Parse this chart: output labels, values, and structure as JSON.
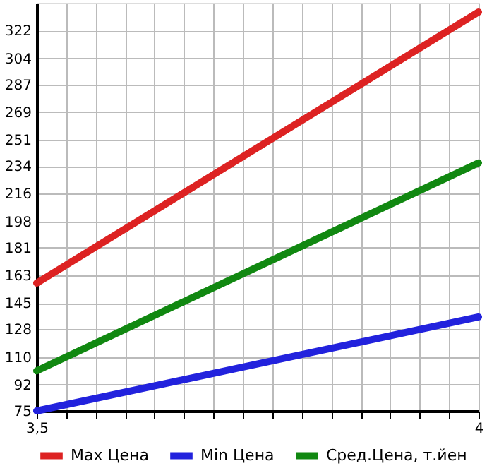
{
  "chart_data": {
    "type": "line",
    "x": [
      3.5,
      4
    ],
    "series": [
      {
        "name": "Max Цена",
        "color": "#dd2222",
        "values": [
          158,
          334
        ]
      },
      {
        "name": "Min Цена",
        "color": "#2222dd",
        "values": [
          75,
          136
        ]
      },
      {
        "name": "Сред.Цена, т.йен",
        "color": "#118811",
        "values": [
          101,
          236
        ]
      }
    ],
    "xlim": [
      3.5,
      4
    ],
    "xticks": [
      {
        "value": 3.5,
        "label": "3,5"
      },
      {
        "value": 3.5333,
        "label": null
      },
      {
        "value": 3.5667,
        "label": null
      },
      {
        "value": 3.6,
        "label": null
      },
      {
        "value": 3.6333,
        "label": null
      },
      {
        "value": 3.6667,
        "label": null
      },
      {
        "value": 3.7,
        "label": null
      },
      {
        "value": 3.7333,
        "label": null
      },
      {
        "value": 3.7667,
        "label": null
      },
      {
        "value": 3.8,
        "label": null
      },
      {
        "value": 3.8333,
        "label": null
      },
      {
        "value": 3.8667,
        "label": null
      },
      {
        "value": 3.9,
        "label": null
      },
      {
        "value": 3.9333,
        "label": null
      },
      {
        "value": 3.9667,
        "label": null
      },
      {
        "value": 4,
        "label": "4"
      }
    ],
    "ylim": [
      75,
      340
    ],
    "yticks": [
      75,
      92,
      110,
      128,
      145,
      163,
      181,
      198,
      216,
      234,
      251,
      269,
      287,
      304,
      322
    ],
    "grid": true,
    "legend": "bottom",
    "marker": "none",
    "line_style": "solid"
  }
}
